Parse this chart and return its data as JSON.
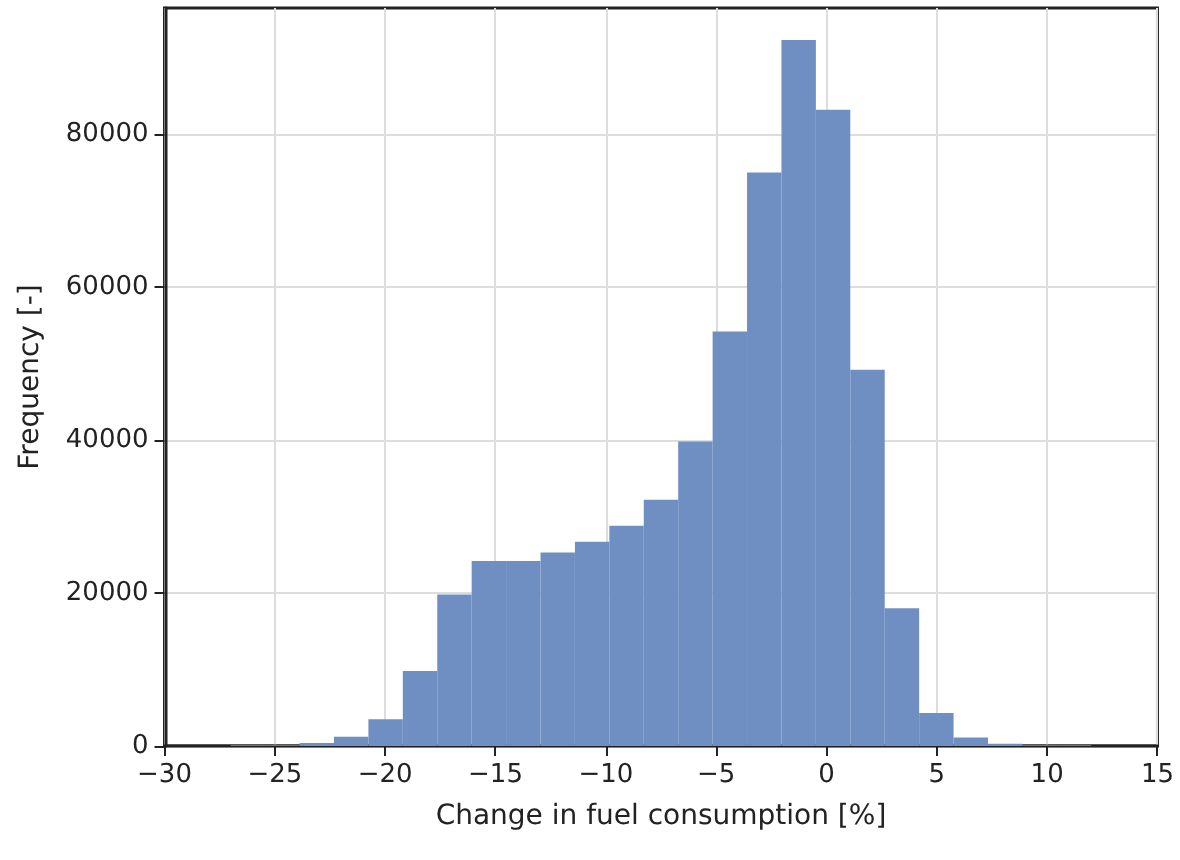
{
  "chart_data": {
    "type": "histogram",
    "xlabel": "Change in fuel consumption [%]",
    "ylabel": "Frequency [-]",
    "bins": [
      -27,
      -25.44,
      -23.88,
      -22.32,
      -20.76,
      -19.2,
      -17.64,
      -16.08,
      -14.52,
      -12.96,
      -11.4,
      -9.84,
      -8.28,
      -6.72,
      -5.16,
      -3.6,
      -2.04,
      -0.48,
      1.08,
      2.64,
      4.2,
      5.76,
      7.32,
      8.88,
      10.44,
      12.0
    ],
    "values": [
      100,
      100,
      400,
      1200,
      3500,
      9800,
      19800,
      24200,
      24200,
      25300,
      26700,
      28800,
      32200,
      39800,
      54200,
      75000,
      92300,
      83200,
      49200,
      18000,
      4300,
      1100,
      300,
      100,
      100
    ],
    "color": "#6f8fc2",
    "xlim": [
      -30,
      15
    ],
    "xticks": [
      -30,
      -25,
      -20,
      -15,
      -10,
      -5,
      0,
      5,
      10,
      15
    ],
    "ylim": [
      0,
      96500
    ],
    "yticks": [
      0,
      20000,
      40000,
      60000,
      80000
    ],
    "grid": true
  }
}
